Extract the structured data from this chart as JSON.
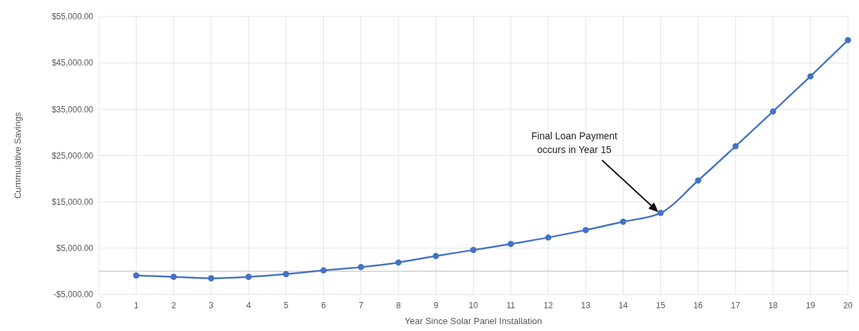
{
  "chart_data": {
    "type": "line",
    "xlabel": "Year Since Solar Panel Installation",
    "ylabel": "Cummulative Savings",
    "x": [
      1,
      2,
      3,
      4,
      5,
      6,
      7,
      8,
      9,
      10,
      11,
      12,
      13,
      14,
      15,
      16,
      17,
      18,
      19,
      20
    ],
    "series": [
      {
        "color": "#4472c4",
        "values": [
          -900,
          -1200,
          -1500,
          -1200,
          -600,
          200,
          900,
          1900,
          3300,
          4600,
          5900,
          7300,
          8900,
          10700,
          12600,
          19600,
          27000,
          34500,
          42100,
          49900
        ]
      }
    ],
    "xlim": [
      0,
      20
    ],
    "xticks": [
      0,
      1,
      2,
      3,
      4,
      5,
      6,
      7,
      8,
      9,
      10,
      11,
      12,
      13,
      14,
      15,
      16,
      17,
      18,
      19,
      20
    ],
    "ylim": [
      -5000,
      55000
    ],
    "yticks": [
      {
        "value": -5000,
        "label": "-$5,000.00"
      },
      {
        "value": 5000,
        "label": "$5,000.00"
      },
      {
        "value": 15000,
        "label": "$15,000.00"
      },
      {
        "value": 25000,
        "label": "$25,000.00"
      },
      {
        "value": 35000,
        "label": "$35,000.00"
      },
      {
        "value": 45000,
        "label": "$45,000.00"
      },
      {
        "value": 55000,
        "label": "$55,000.00"
      }
    ],
    "grid": true,
    "marker": "circle",
    "line_style": "solid",
    "annotations": [
      "Final Loan Payment\noccurs in Year 15"
    ]
  }
}
